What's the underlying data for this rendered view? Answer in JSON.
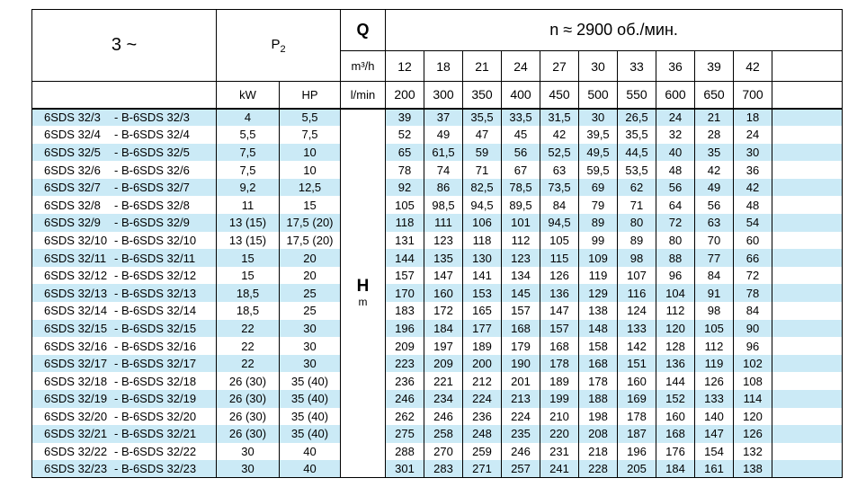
{
  "header": {
    "phase": "3 ~",
    "p2_label": "P",
    "p2_sub": "2",
    "q_label": "Q",
    "q_unit_top": "m³/h",
    "q_unit_bottom": "l/min",
    "n_label": "n ≈ 2900 об./мин.",
    "kw": "kW",
    "hp": "HP",
    "flow_m3h": [
      "12",
      "18",
      "21",
      "24",
      "27",
      "30",
      "33",
      "36",
      "39",
      "42"
    ],
    "flow_lmin": [
      "200",
      "300",
      "350",
      "400",
      "450",
      "500",
      "550",
      "600",
      "650",
      "700"
    ],
    "h_label": "H",
    "h_unit": "m"
  },
  "colors": {
    "stripe": "#cbeaf6",
    "plain": "#ffffff",
    "border": "#000000"
  },
  "rows": [
    {
      "model": "6SDS 32/3",
      "variant": "- B-6SDS 32/3",
      "kw": "4",
      "hp": "5,5",
      "values": [
        "39",
        "37",
        "35,5",
        "33,5",
        "31,5",
        "30",
        "26,5",
        "24",
        "21",
        "18"
      ]
    },
    {
      "model": "6SDS 32/4",
      "variant": "- B-6SDS 32/4",
      "kw": "5,5",
      "hp": "7,5",
      "values": [
        "52",
        "49",
        "47",
        "45",
        "42",
        "39,5",
        "35,5",
        "32",
        "28",
        "24"
      ]
    },
    {
      "model": "6SDS 32/5",
      "variant": "- B-6SDS 32/5",
      "kw": "7,5",
      "hp": "10",
      "values": [
        "65",
        "61,5",
        "59",
        "56",
        "52,5",
        "49,5",
        "44,5",
        "40",
        "35",
        "30"
      ]
    },
    {
      "model": "6SDS 32/6",
      "variant": "- B-6SDS 32/6",
      "kw": "7,5",
      "hp": "10",
      "values": [
        "78",
        "74",
        "71",
        "67",
        "63",
        "59,5",
        "53,5",
        "48",
        "42",
        "36"
      ]
    },
    {
      "model": "6SDS 32/7",
      "variant": "- B-6SDS 32/7",
      "kw": "9,2",
      "hp": "12,5",
      "values": [
        "92",
        "86",
        "82,5",
        "78,5",
        "73,5",
        "69",
        "62",
        "56",
        "49",
        "42"
      ]
    },
    {
      "model": "6SDS 32/8",
      "variant": "- B-6SDS 32/8",
      "kw": "11",
      "hp": "15",
      "values": [
        "105",
        "98,5",
        "94,5",
        "89,5",
        "84",
        "79",
        "71",
        "64",
        "56",
        "48"
      ]
    },
    {
      "model": "6SDS 32/9",
      "variant": "- B-6SDS 32/9",
      "kw": "13 (15)",
      "hp": "17,5 (20)",
      "values": [
        "118",
        "111",
        "106",
        "101",
        "94,5",
        "89",
        "80",
        "72",
        "63",
        "54"
      ]
    },
    {
      "model": "6SDS 32/10",
      "variant": "- B-6SDS 32/10",
      "kw": "13 (15)",
      "hp": "17,5 (20)",
      "values": [
        "131",
        "123",
        "118",
        "112",
        "105",
        "99",
        "89",
        "80",
        "70",
        "60"
      ]
    },
    {
      "model": "6SDS 32/11",
      "variant": "- B-6SDS 32/11",
      "kw": "15",
      "hp": "20",
      "values": [
        "144",
        "135",
        "130",
        "123",
        "115",
        "109",
        "98",
        "88",
        "77",
        "66"
      ]
    },
    {
      "model": "6SDS 32/12",
      "variant": "- B-6SDS 32/12",
      "kw": "15",
      "hp": "20",
      "values": [
        "157",
        "147",
        "141",
        "134",
        "126",
        "119",
        "107",
        "96",
        "84",
        "72"
      ]
    },
    {
      "model": "6SDS 32/13",
      "variant": "- B-6SDS 32/13",
      "kw": "18,5",
      "hp": "25",
      "values": [
        "170",
        "160",
        "153",
        "145",
        "136",
        "129",
        "116",
        "104",
        "91",
        "78"
      ]
    },
    {
      "model": "6SDS 32/14",
      "variant": "- B-6SDS 32/14",
      "kw": "18,5",
      "hp": "25",
      "values": [
        "183",
        "172",
        "165",
        "157",
        "147",
        "138",
        "124",
        "112",
        "98",
        "84"
      ]
    },
    {
      "model": "6SDS 32/15",
      "variant": "- B-6SDS 32/15",
      "kw": "22",
      "hp": "30",
      "values": [
        "196",
        "184",
        "177",
        "168",
        "157",
        "148",
        "133",
        "120",
        "105",
        "90"
      ]
    },
    {
      "model": "6SDS 32/16",
      "variant": "- B-6SDS 32/16",
      "kw": "22",
      "hp": "30",
      "values": [
        "209",
        "197",
        "189",
        "179",
        "168",
        "158",
        "142",
        "128",
        "112",
        "96"
      ]
    },
    {
      "model": "6SDS 32/17",
      "variant": "- B-6SDS 32/17",
      "kw": "22",
      "hp": "30",
      "values": [
        "223",
        "209",
        "200",
        "190",
        "178",
        "168",
        "151",
        "136",
        "119",
        "102"
      ]
    },
    {
      "model": "6SDS 32/18",
      "variant": "- B-6SDS 32/18",
      "kw": "26 (30)",
      "hp": "35 (40)",
      "values": [
        "236",
        "221",
        "212",
        "201",
        "189",
        "178",
        "160",
        "144",
        "126",
        "108"
      ]
    },
    {
      "model": "6SDS 32/19",
      "variant": "- B-6SDS 32/19",
      "kw": "26 (30)",
      "hp": "35 (40)",
      "values": [
        "246",
        "234",
        "224",
        "213",
        "199",
        "188",
        "169",
        "152",
        "133",
        "114"
      ]
    },
    {
      "model": "6SDS 32/20",
      "variant": "- B-6SDS 32/20",
      "kw": "26 (30)",
      "hp": "35 (40)",
      "values": [
        "262",
        "246",
        "236",
        "224",
        "210",
        "198",
        "178",
        "160",
        "140",
        "120"
      ]
    },
    {
      "model": "6SDS 32/21",
      "variant": "- B-6SDS 32/21",
      "kw": "26 (30)",
      "hp": "35 (40)",
      "values": [
        "275",
        "258",
        "248",
        "235",
        "220",
        "208",
        "187",
        "168",
        "147",
        "126"
      ]
    },
    {
      "model": "6SDS 32/22",
      "variant": "- B-6SDS 32/22",
      "kw": "30",
      "hp": "40",
      "values": [
        "288",
        "270",
        "259",
        "246",
        "231",
        "218",
        "196",
        "176",
        "154",
        "132"
      ]
    },
    {
      "model": "6SDS 32/23",
      "variant": "- B-6SDS 32/23",
      "kw": "30",
      "hp": "40",
      "values": [
        "301",
        "283",
        "271",
        "257",
        "241",
        "228",
        "205",
        "184",
        "161",
        "138"
      ]
    }
  ]
}
